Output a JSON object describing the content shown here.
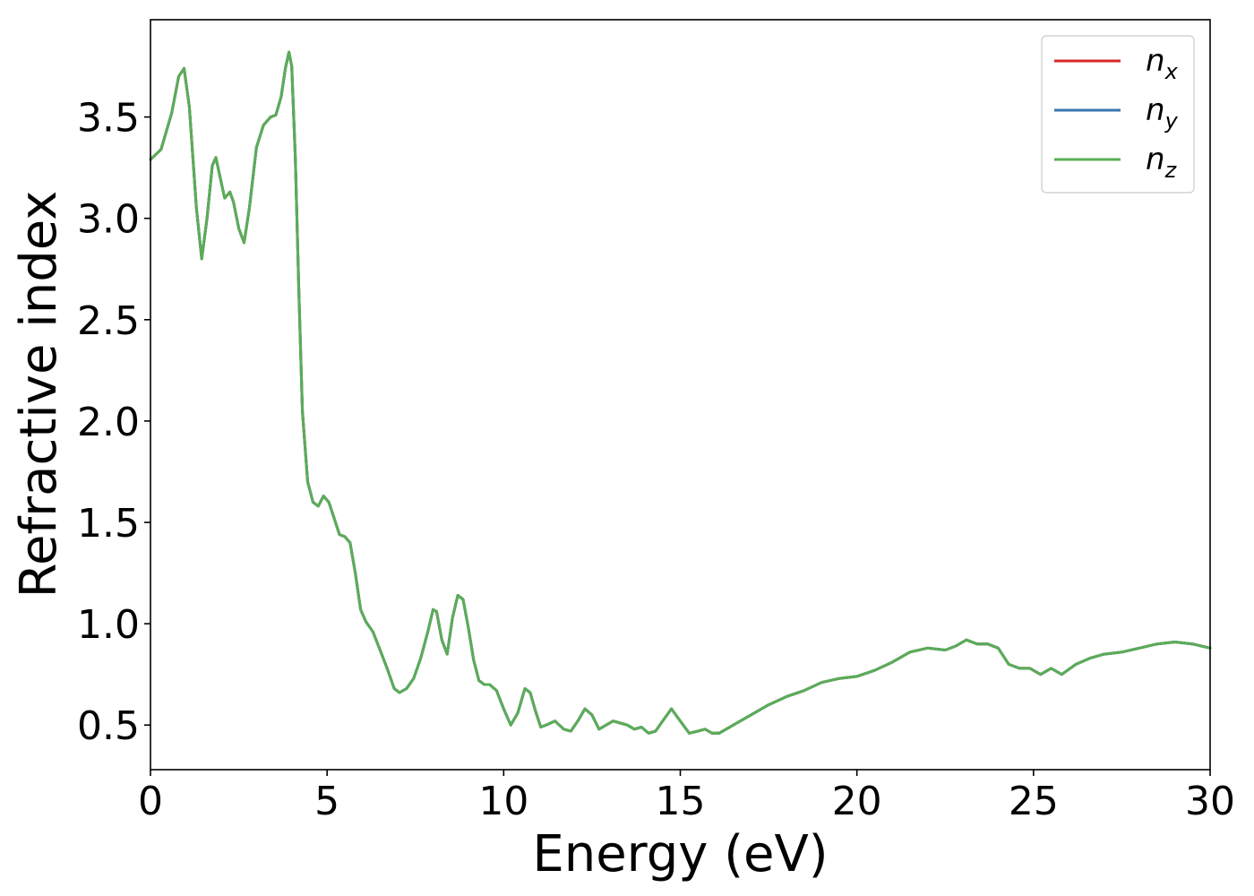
{
  "chart_data": {
    "type": "line",
    "title": "",
    "xlabel": "Energy (eV)",
    "ylabel": "Refractive index",
    "xlim": [
      0,
      30
    ],
    "ylim": [
      0.28,
      3.98
    ],
    "xticks": [
      0,
      5,
      10,
      15,
      20,
      25,
      30
    ],
    "yticks": [
      0.5,
      1.0,
      1.5,
      2.0,
      2.5,
      3.0,
      3.5
    ],
    "xtick_labels": [
      "0",
      "5",
      "10",
      "15",
      "20",
      "25",
      "30"
    ],
    "ytick_labels": [
      "0.5",
      "1.0",
      "1.5",
      "2.0",
      "2.5",
      "3.0",
      "3.5"
    ],
    "grid": false,
    "legend_position": "top-right",
    "x": [
      0,
      0.3,
      0.6,
      0.8,
      0.95,
      1.1,
      1.3,
      1.45,
      1.6,
      1.75,
      1.85,
      1.95,
      2.1,
      2.25,
      2.35,
      2.5,
      2.65,
      2.8,
      3.0,
      3.2,
      3.4,
      3.55,
      3.7,
      3.82,
      3.92,
      4.0,
      4.1,
      4.2,
      4.3,
      4.45,
      4.6,
      4.75,
      4.9,
      5.05,
      5.2,
      5.35,
      5.5,
      5.65,
      5.8,
      5.95,
      6.1,
      6.3,
      6.5,
      6.7,
      6.9,
      7.05,
      7.25,
      7.45,
      7.65,
      7.85,
      8.0,
      8.1,
      8.25,
      8.4,
      8.55,
      8.7,
      8.85,
      9.0,
      9.15,
      9.3,
      9.45,
      9.6,
      9.8,
      10.0,
      10.2,
      10.4,
      10.6,
      10.75,
      10.9,
      11.05,
      11.2,
      11.45,
      11.7,
      11.9,
      12.1,
      12.3,
      12.5,
      12.7,
      12.9,
      13.1,
      13.3,
      13.5,
      13.7,
      13.9,
      14.1,
      14.3,
      14.5,
      14.75,
      15.0,
      15.25,
      15.5,
      15.7,
      15.9,
      16.1,
      16.5,
      17.0,
      17.5,
      18.0,
      18.5,
      19.0,
      19.5,
      20.0,
      20.5,
      21.0,
      21.5,
      22.0,
      22.5,
      22.8,
      23.1,
      23.4,
      23.7,
      24.0,
      24.3,
      24.6,
      24.9,
      25.2,
      25.5,
      25.8,
      26.2,
      26.6,
      27.0,
      27.5,
      28.0,
      28.5,
      29.0,
      29.5,
      30.0
    ],
    "series": [
      {
        "name": "n_x",
        "label_base": "n",
        "label_sub": "x",
        "color": "#d62728",
        "values": [
          3.29,
          3.34,
          3.52,
          3.7,
          3.74,
          3.55,
          3.05,
          2.8,
          3.0,
          3.26,
          3.3,
          3.22,
          3.1,
          3.13,
          3.08,
          2.95,
          2.88,
          3.05,
          3.35,
          3.46,
          3.5,
          3.51,
          3.6,
          3.74,
          3.82,
          3.75,
          3.3,
          2.65,
          2.05,
          1.7,
          1.6,
          1.58,
          1.63,
          1.6,
          1.52,
          1.44,
          1.43,
          1.4,
          1.25,
          1.07,
          1.01,
          0.96,
          0.87,
          0.78,
          0.68,
          0.66,
          0.68,
          0.73,
          0.83,
          0.96,
          1.07,
          1.06,
          0.92,
          0.85,
          1.03,
          1.14,
          1.12,
          0.98,
          0.82,
          0.72,
          0.7,
          0.7,
          0.67,
          0.58,
          0.5,
          0.56,
          0.68,
          0.66,
          0.57,
          0.49,
          0.5,
          0.52,
          0.48,
          0.47,
          0.52,
          0.58,
          0.55,
          0.48,
          0.5,
          0.52,
          0.51,
          0.5,
          0.48,
          0.49,
          0.46,
          0.47,
          0.52,
          0.58,
          0.52,
          0.46,
          0.47,
          0.48,
          0.46,
          0.46,
          0.5,
          0.55,
          0.6,
          0.64,
          0.67,
          0.71,
          0.73,
          0.74,
          0.77,
          0.81,
          0.86,
          0.88,
          0.87,
          0.89,
          0.92,
          0.9,
          0.9,
          0.88,
          0.8,
          0.78,
          0.78,
          0.75,
          0.78,
          0.75,
          0.8,
          0.83,
          0.85,
          0.86,
          0.88,
          0.9,
          0.91,
          0.9,
          0.88
        ]
      },
      {
        "name": "n_y",
        "label_base": "n",
        "label_sub": "y",
        "color": "#3b75af",
        "values": [
          3.29,
          3.34,
          3.52,
          3.7,
          3.74,
          3.55,
          3.05,
          2.8,
          3.0,
          3.26,
          3.3,
          3.22,
          3.1,
          3.13,
          3.08,
          2.95,
          2.88,
          3.05,
          3.35,
          3.46,
          3.5,
          3.51,
          3.6,
          3.74,
          3.82,
          3.75,
          3.3,
          2.65,
          2.05,
          1.7,
          1.6,
          1.58,
          1.63,
          1.6,
          1.52,
          1.44,
          1.43,
          1.4,
          1.25,
          1.07,
          1.01,
          0.96,
          0.87,
          0.78,
          0.68,
          0.66,
          0.68,
          0.73,
          0.83,
          0.96,
          1.07,
          1.06,
          0.92,
          0.85,
          1.03,
          1.14,
          1.12,
          0.98,
          0.82,
          0.72,
          0.7,
          0.7,
          0.67,
          0.58,
          0.5,
          0.56,
          0.68,
          0.66,
          0.57,
          0.49,
          0.5,
          0.52,
          0.48,
          0.47,
          0.52,
          0.58,
          0.55,
          0.48,
          0.5,
          0.52,
          0.51,
          0.5,
          0.48,
          0.49,
          0.46,
          0.47,
          0.52,
          0.58,
          0.52,
          0.46,
          0.47,
          0.48,
          0.46,
          0.46,
          0.5,
          0.55,
          0.6,
          0.64,
          0.67,
          0.71,
          0.73,
          0.74,
          0.77,
          0.81,
          0.86,
          0.88,
          0.87,
          0.89,
          0.92,
          0.9,
          0.9,
          0.88,
          0.8,
          0.78,
          0.78,
          0.75,
          0.78,
          0.75,
          0.8,
          0.83,
          0.85,
          0.86,
          0.88,
          0.9,
          0.91,
          0.9,
          0.88
        ]
      },
      {
        "name": "n_z",
        "label_base": "n",
        "label_sub": "z",
        "color": "#5aad57",
        "values": [
          3.29,
          3.34,
          3.52,
          3.7,
          3.74,
          3.55,
          3.05,
          2.8,
          3.0,
          3.26,
          3.3,
          3.22,
          3.1,
          3.13,
          3.08,
          2.95,
          2.88,
          3.05,
          3.35,
          3.46,
          3.5,
          3.51,
          3.6,
          3.74,
          3.82,
          3.75,
          3.3,
          2.65,
          2.05,
          1.7,
          1.6,
          1.58,
          1.63,
          1.6,
          1.52,
          1.44,
          1.43,
          1.4,
          1.25,
          1.07,
          1.01,
          0.96,
          0.87,
          0.78,
          0.68,
          0.66,
          0.68,
          0.73,
          0.83,
          0.96,
          1.07,
          1.06,
          0.92,
          0.85,
          1.03,
          1.14,
          1.12,
          0.98,
          0.82,
          0.72,
          0.7,
          0.7,
          0.67,
          0.58,
          0.5,
          0.56,
          0.68,
          0.66,
          0.57,
          0.49,
          0.5,
          0.52,
          0.48,
          0.47,
          0.52,
          0.58,
          0.55,
          0.48,
          0.5,
          0.52,
          0.51,
          0.5,
          0.48,
          0.49,
          0.46,
          0.47,
          0.52,
          0.58,
          0.52,
          0.46,
          0.47,
          0.48,
          0.46,
          0.46,
          0.5,
          0.55,
          0.6,
          0.64,
          0.67,
          0.71,
          0.73,
          0.74,
          0.77,
          0.81,
          0.86,
          0.88,
          0.87,
          0.89,
          0.92,
          0.9,
          0.9,
          0.88,
          0.8,
          0.78,
          0.78,
          0.75,
          0.78,
          0.75,
          0.8,
          0.83,
          0.85,
          0.86,
          0.88,
          0.9,
          0.91,
          0.9,
          0.88
        ]
      }
    ]
  }
}
